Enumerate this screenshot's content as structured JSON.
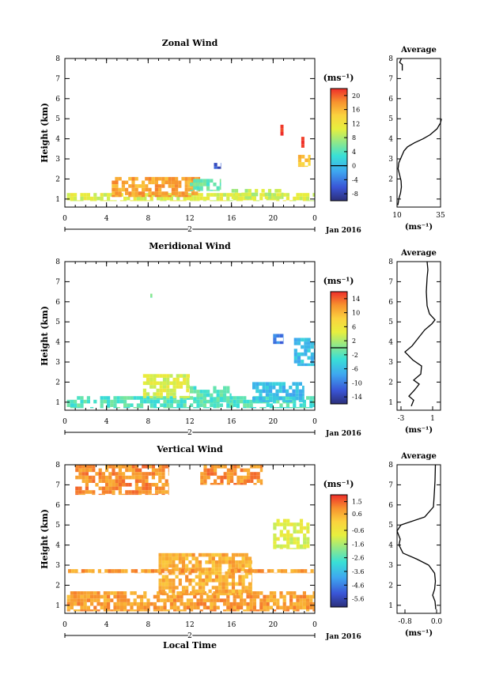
{
  "chart_data": [
    {
      "type": "heatmap",
      "title": "Zonal Wind",
      "xlabel": "",
      "ylabel": "Height (km)",
      "x_ticks": [
        "0",
        "4",
        "8",
        "12",
        "16",
        "20",
        "0"
      ],
      "x_range": [
        0,
        24
      ],
      "y_ticks": [
        "1",
        "2",
        "3",
        "4",
        "5",
        "6",
        "7",
        "8"
      ],
      "y_range": [
        0.6,
        8.0
      ],
      "day_label": "2",
      "date_label": "Jan 2016",
      "unit_label": "(ms⁻¹)",
      "colorbar": {
        "ticks": [
          "20",
          "16",
          "12",
          "8",
          "4",
          "0",
          "-4",
          "-8"
        ],
        "range": [
          -10,
          22
        ],
        "zero_line": 0
      },
      "features": [
        {
          "x0": 0.2,
          "x1": 24,
          "y0": 0.9,
          "y1": 1.3,
          "value": 10
        },
        {
          "x0": 4.5,
          "x1": 13,
          "y0": 1.1,
          "y1": 2.1,
          "value": 17
        },
        {
          "x0": 12,
          "x1": 15,
          "y0": 1.4,
          "y1": 2.0,
          "value": 5
        },
        {
          "x0": 16,
          "x1": 21,
          "y0": 1.0,
          "y1": 1.5,
          "value": 9
        },
        {
          "x0": 14,
          "x1": 15,
          "y0": 2.5,
          "y1": 2.8,
          "value": -7
        },
        {
          "x0": 20.7,
          "x1": 21.0,
          "y0": 3.7,
          "y1": 4.7,
          "value": 22
        },
        {
          "x0": 22.7,
          "x1": 23.0,
          "y0": 3.3,
          "y1": 4.1,
          "value": 22
        },
        {
          "x0": 22.4,
          "x1": 23.6,
          "y0": 2.6,
          "y1": 3.2,
          "value": 15
        }
      ],
      "profile": {
        "title": "Average",
        "xlabel": "(ms⁻¹)",
        "x_ticks": [
          "10",
          "35"
        ],
        "x_range": [
          10,
          35
        ],
        "points": [
          [
            10.5,
            0.7
          ],
          [
            11,
            1.0
          ],
          [
            12,
            1.3
          ],
          [
            12.5,
            1.6
          ],
          [
            12.3,
            1.9
          ],
          [
            11.5,
            2.2
          ],
          [
            10.6,
            2.5
          ],
          [
            11,
            2.8
          ],
          [
            12,
            3.0
          ],
          [
            13,
            3.2
          ],
          [
            14,
            3.4
          ],
          [
            16,
            3.6
          ],
          [
            20,
            3.8
          ],
          [
            25,
            4.0
          ],
          [
            29,
            4.2
          ],
          [
            33,
            4.5
          ],
          [
            35,
            4.8
          ],
          [
            35.5,
            5.0
          ]
        ],
        "points_top": [
          [
            13,
            7.4
          ],
          [
            13,
            7.7
          ],
          [
            11.5,
            7.8
          ],
          [
            12.5,
            8.0
          ]
        ]
      }
    },
    {
      "type": "heatmap",
      "title": "Meridional Wind",
      "xlabel": "",
      "ylabel": "Height (km)",
      "x_ticks": [
        "0",
        "4",
        "8",
        "12",
        "16",
        "20",
        "0"
      ],
      "x_range": [
        0,
        24
      ],
      "y_ticks": [
        "1",
        "2",
        "3",
        "4",
        "5",
        "6",
        "7",
        "8"
      ],
      "y_range": [
        0.6,
        8.0
      ],
      "day_label": "2",
      "date_label": "Jan 2016",
      "unit_label": "(ms⁻¹)",
      "colorbar": {
        "ticks": [
          "14",
          "10",
          "6",
          "2",
          "-2",
          "-6",
          "-10",
          "-14"
        ],
        "range": [
          -16,
          16
        ],
        "zero_line": 0
      },
      "features": [
        {
          "x0": 0.2,
          "x1": 24,
          "y0": 0.7,
          "y1": 1.3,
          "value": -2
        },
        {
          "x0": 7.5,
          "x1": 12,
          "y0": 1.2,
          "y1": 2.4,
          "value": 4
        },
        {
          "x0": 12,
          "x1": 16,
          "y0": 1.0,
          "y1": 1.8,
          "value": -2
        },
        {
          "x0": 18,
          "x1": 23,
          "y0": 1.0,
          "y1": 2.0,
          "value": -6
        },
        {
          "x0": 20,
          "x1": 21,
          "y0": 3.9,
          "y1": 4.4,
          "value": -10
        },
        {
          "x0": 22,
          "x1": 24,
          "y0": 2.8,
          "y1": 4.2,
          "value": -6
        },
        {
          "x0": 8.2,
          "x1": 8.4,
          "y0": 6.2,
          "y1": 6.4,
          "value": -1
        }
      ],
      "profile": {
        "title": "Average",
        "xlabel": "(ms⁻¹)",
        "x_ticks": [
          "-3",
          "1"
        ],
        "x_range": [
          -3.5,
          2
        ],
        "points": [
          [
            -1.7,
            0.8
          ],
          [
            -1.4,
            1.1
          ],
          [
            -2.0,
            1.3
          ],
          [
            -1.3,
            1.6
          ],
          [
            -0.7,
            1.9
          ],
          [
            -1.4,
            2.1
          ],
          [
            -0.5,
            2.4
          ],
          [
            -0.4,
            2.8
          ],
          [
            -1.5,
            3.1
          ],
          [
            -2.5,
            3.5
          ],
          [
            -1.6,
            3.8
          ],
          [
            -0.8,
            4.2
          ],
          [
            0.0,
            4.6
          ],
          [
            0.9,
            4.9
          ],
          [
            1.3,
            5.1
          ],
          [
            0.6,
            5.4
          ],
          [
            0.3,
            5.8
          ],
          [
            0.2,
            6.5
          ],
          [
            0.3,
            7.2
          ],
          [
            0.4,
            7.6
          ],
          [
            0.3,
            8.0
          ]
        ]
      }
    },
    {
      "type": "heatmap",
      "title": "Vertical Wind",
      "xlabel": "Local Time",
      "ylabel": "Height (km)",
      "x_ticks": [
        "0",
        "4",
        "8",
        "12",
        "16",
        "20",
        "0"
      ],
      "x_range": [
        0,
        24
      ],
      "y_ticks": [
        "1",
        "2",
        "3",
        "4",
        "5",
        "6",
        "7",
        "8"
      ],
      "y_range": [
        0.6,
        8.0
      ],
      "day_label": "2",
      "date_label": "Jan 2016",
      "unit_label": "(ms⁻¹)",
      "colorbar": {
        "ticks": [
          "1.5",
          "0.6",
          "-0.6",
          "-1.6",
          "-2.6",
          "-3.6",
          "-4.6",
          "-5.6"
        ],
        "range": [
          -6.2,
          2.0
        ]
      },
      "features": [
        {
          "x0": 0.2,
          "x1": 24,
          "y0": 0.7,
          "y1": 1.7,
          "value": 0.8
        },
        {
          "x0": 9,
          "x1": 18,
          "y0": 1.5,
          "y1": 3.6,
          "value": 0.6
        },
        {
          "x0": 0.3,
          "x1": 24,
          "y0": 2.6,
          "y1": 2.8,
          "value": 0.8
        },
        {
          "x0": 1,
          "x1": 10,
          "y0": 6.5,
          "y1": 8.0,
          "value": 1.0
        },
        {
          "x0": 13,
          "x1": 19,
          "y0": 7.0,
          "y1": 8.0,
          "value": 1.0
        },
        {
          "x0": 20,
          "x1": 23.5,
          "y0": 3.8,
          "y1": 5.3,
          "value": -1.0
        }
      ],
      "profile": {
        "title": "Average",
        "xlabel": "(ms⁻¹)",
        "x_ticks": [
          "-0.8",
          "0.0"
        ],
        "x_range": [
          -1.0,
          0.1
        ],
        "points": [
          [
            -0.02,
            0.8
          ],
          [
            -0.04,
            1.2
          ],
          [
            -0.1,
            1.5
          ],
          [
            -0.05,
            1.8
          ],
          [
            -0.03,
            2.2
          ],
          [
            -0.05,
            2.6
          ],
          [
            -0.2,
            3.0
          ],
          [
            -0.5,
            3.3
          ],
          [
            -0.85,
            3.6
          ],
          [
            -0.95,
            4.0
          ],
          [
            -0.92,
            4.3
          ],
          [
            -1.0,
            4.7
          ],
          [
            -0.9,
            5.0
          ],
          [
            -0.3,
            5.4
          ],
          [
            -0.08,
            5.9
          ],
          [
            -0.06,
            6.5
          ],
          [
            -0.04,
            7.2
          ],
          [
            -0.03,
            8.0
          ]
        ]
      }
    }
  ]
}
